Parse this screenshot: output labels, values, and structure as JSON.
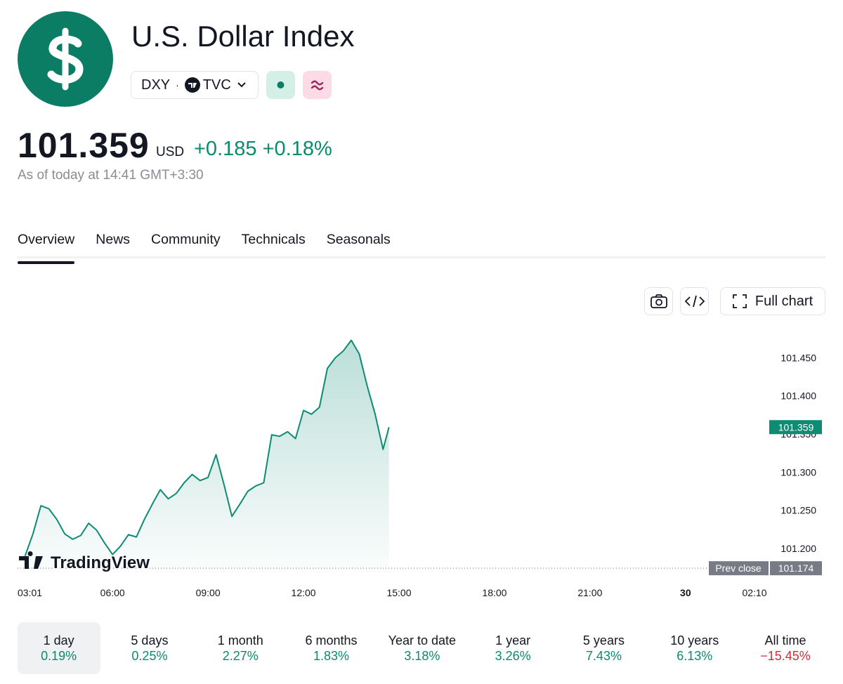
{
  "header": {
    "title": "U.S. Dollar Index",
    "symbol": "DXY",
    "exchange": "TVC",
    "price": "101.359",
    "currency": "USD",
    "change": "+0.185",
    "change_percent": "+0.18%",
    "as_of": "As of today at 14:41 GMT+3:30"
  },
  "tabs": [
    "Overview",
    "News",
    "Community",
    "Technicals",
    "Seasonals"
  ],
  "toolbar": {
    "full_chart": "Full chart"
  },
  "chart_data": {
    "type": "line",
    "watermark": "TradingView",
    "color": "#0d8b73",
    "x": [
      "03:15",
      "03:30",
      "03:45",
      "04:00",
      "04:15",
      "04:30",
      "04:45",
      "05:00",
      "05:15",
      "05:30",
      "05:45",
      "06:00",
      "06:15",
      "06:30",
      "06:45",
      "07:00",
      "07:15",
      "07:30",
      "07:45",
      "08:00",
      "08:15",
      "08:30",
      "08:45",
      "09:00",
      "09:15",
      "09:30",
      "09:45",
      "10:00",
      "10:15",
      "10:30",
      "10:45",
      "11:00",
      "11:15",
      "11:30",
      "11:45",
      "12:00",
      "12:15",
      "12:30",
      "12:45",
      "13:00",
      "13:15",
      "13:30",
      "13:45",
      "14:00",
      "14:15",
      "14:30",
      "14:41"
    ],
    "values": [
      101.19,
      101.219,
      101.256,
      101.252,
      101.238,
      101.219,
      101.212,
      101.217,
      101.233,
      101.224,
      101.207,
      101.192,
      101.203,
      101.218,
      101.215,
      101.238,
      101.258,
      101.277,
      101.265,
      101.272,
      101.286,
      101.297,
      101.289,
      101.293,
      101.323,
      101.284,
      101.242,
      101.258,
      101.275,
      101.282,
      101.286,
      101.349,
      101.347,
      101.353,
      101.344,
      101.381,
      101.376,
      101.385,
      101.436,
      101.45,
      101.459,
      101.473,
      101.455,
      101.413,
      101.376,
      101.33,
      101.359
    ],
    "xlim": [
      "03:01",
      "02:10"
    ],
    "xticks": [
      "03:01",
      "06:00",
      "09:00",
      "12:00",
      "15:00",
      "18:00",
      "21:00",
      {
        "value": "24:00",
        "label": "30"
      },
      "02:10"
    ],
    "ylim": [
      101.17,
      101.49
    ],
    "yticks": [
      {
        "value": 101.2,
        "label": "101.200"
      },
      {
        "value": 101.25,
        "label": "101.250"
      },
      {
        "value": 101.3,
        "label": "101.300"
      },
      {
        "value": 101.35,
        "label": "101.350"
      },
      {
        "value": 101.4,
        "label": "101.400"
      },
      {
        "value": 101.45,
        "label": "101.450"
      }
    ],
    "prev_close": 101.174,
    "prev_close_label": "Prev close"
  },
  "periods": [
    {
      "label": "1 day",
      "change": "0.19%"
    },
    {
      "label": "5 days",
      "change": "0.25%"
    },
    {
      "label": "1 month",
      "change": "2.27%"
    },
    {
      "label": "6 months",
      "change": "1.83%"
    },
    {
      "label": "Year to date",
      "change": "3.18%"
    },
    {
      "label": "1 year",
      "change": "3.26%"
    },
    {
      "label": "5 years",
      "change": "7.43%"
    },
    {
      "label": "10 years",
      "change": "6.13%"
    },
    {
      "label": "All time",
      "change": "−15.45%"
    }
  ]
}
